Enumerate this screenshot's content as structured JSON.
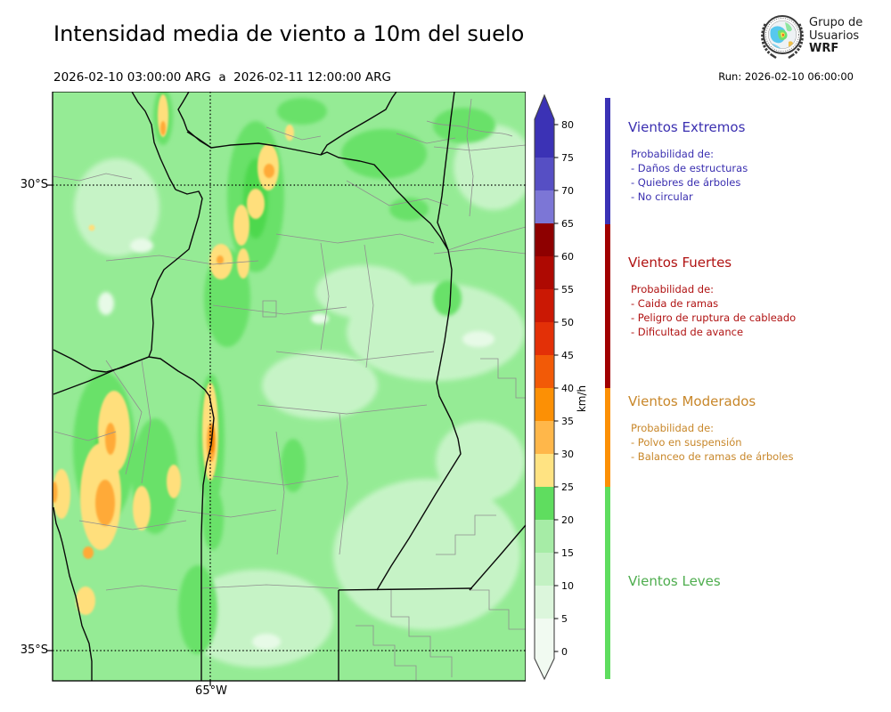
{
  "header": {
    "title": "Intensidad media de viento a 10m del suelo",
    "period": "2026-02-10 03:00:00 ARG  a  2026-02-11 12:00:00 ARG",
    "run": "Run: 2026-02-10 06:00:00",
    "logo": {
      "line1": "Grupo de",
      "line2": "Usuarios",
      "line3": "WRF"
    }
  },
  "map": {
    "lat_labels": {
      "lat30": "30°S",
      "lat35": "35°S"
    },
    "lon_label": "65°W"
  },
  "colorbar": {
    "unit": "km/h",
    "ticks": [
      0,
      5,
      10,
      15,
      20,
      25,
      30,
      35,
      40,
      45,
      50,
      55,
      60,
      65,
      70,
      75,
      80
    ],
    "segments": [
      {
        "from": 0,
        "to": 5,
        "color": "#F1FAF1"
      },
      {
        "from": 5,
        "to": 10,
        "color": "#DCF6DC"
      },
      {
        "from": 10,
        "to": 15,
        "color": "#C3F1C3"
      },
      {
        "from": 15,
        "to": 20,
        "color": "#A6ECA6"
      },
      {
        "from": 20,
        "to": 25,
        "color": "#5FDD5F"
      },
      {
        "from": 25,
        "to": 30,
        "color": "#FFE382"
      },
      {
        "from": 30,
        "to": 35,
        "color": "#FFB74A"
      },
      {
        "from": 35,
        "to": 40,
        "color": "#FC9005"
      },
      {
        "from": 40,
        "to": 45,
        "color": "#F25A07"
      },
      {
        "from": 45,
        "to": 50,
        "color": "#E33007"
      },
      {
        "from": 50,
        "to": 55,
        "color": "#CB1804"
      },
      {
        "from": 55,
        "to": 60,
        "color": "#AE0902"
      },
      {
        "from": 60,
        "to": 65,
        "color": "#8E0000"
      },
      {
        "from": 65,
        "to": 70,
        "color": "#7C76D6"
      },
      {
        "from": 70,
        "to": 75,
        "color": "#564FC4"
      },
      {
        "from": 75,
        "to": 80,
        "color": "#3B32B5"
      }
    ],
    "over_color": "#3B32B5",
    "under_color": "#F1FAF1"
  },
  "legend": {
    "categories": [
      {
        "name": "Vientos Extremos",
        "color": "#3A2FB0",
        "bar_color": "#3B32B5",
        "intro": "Probabilidad de:",
        "items": [
          "- Daños de estructuras",
          "- Quiebres de árboles",
          "- No circular"
        ]
      },
      {
        "name": "Vientos Fuertes",
        "color": "#B01212",
        "bar_color": "#A00000",
        "intro": "Probabilidad de:",
        "items": [
          "- Caida de ramas",
          "- Peligro de ruptura de cableado",
          "- Dificultad de avance"
        ]
      },
      {
        "name": "Vientos Moderados",
        "color": "#C8872A",
        "bar_color": "#FC9005",
        "intro": "Probabilidad de:",
        "items": [
          "- Polvo en suspensión",
          "- Balanceo de ramas de árboles"
        ]
      },
      {
        "name": "Vientos Leves",
        "color": "#4EAD4E",
        "bar_color": "#5FDD5F",
        "intro": "",
        "items": []
      }
    ]
  }
}
